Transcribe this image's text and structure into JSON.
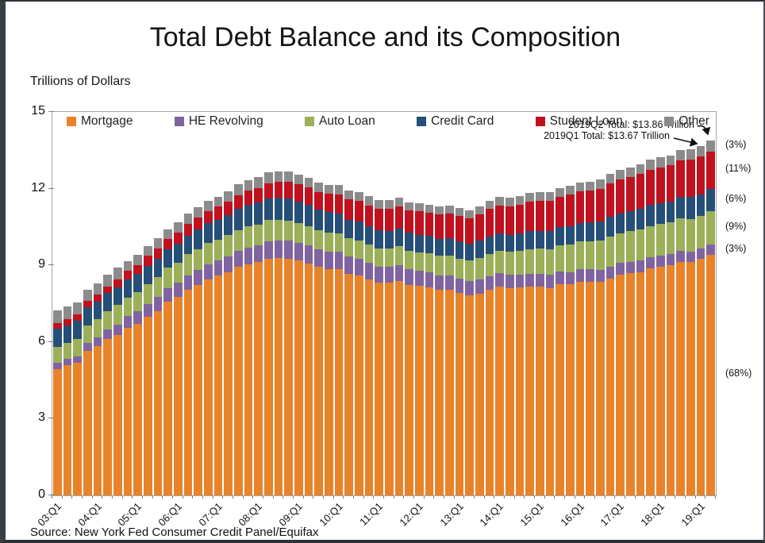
{
  "title": "Total Debt Balance and its Composition",
  "y_axis_unit_label": "Trillions of Dollars",
  "source": "Source: New York Fed Consumer Credit Panel/Equifax",
  "annotations": {
    "q2_total": "2019Q2 Total: $13.86 Trillion",
    "q1_total": "2019Q1 Total: $13.67 Trillion",
    "segment_shares": [
      {
        "series": "Mortgage",
        "label": "(68%)"
      },
      {
        "series": "HE Revolving",
        "label": "(3%)"
      },
      {
        "series": "Auto Loan",
        "label": "(9%)"
      },
      {
        "series": "Credit Card",
        "label": "(6%)"
      },
      {
        "series": "Student Loan",
        "label": "(11%)"
      },
      {
        "series": "Other",
        "label": "(3%)"
      }
    ]
  },
  "colors": {
    "mortgage": "#E8832A",
    "he_revolving": "#8064A2",
    "auto_loan": "#9BB058",
    "credit_card": "#254E78",
    "student_loan": "#C0111E",
    "other": "#8B8B8B",
    "axis": "#A6A6A6"
  },
  "chart_data": {
    "type": "bar",
    "stacked": true,
    "title": "Total Debt Balance and its Composition",
    "ylabel": "Trillions of Dollars",
    "ylim": [
      0,
      15
    ],
    "y_ticks": [
      0,
      3,
      6,
      9,
      12,
      15
    ],
    "x_label_every": 4,
    "legend_position": "top-inside",
    "grid": false,
    "x": [
      "03:Q1",
      "03:Q2",
      "03:Q3",
      "03:Q4",
      "04:Q1",
      "04:Q2",
      "04:Q3",
      "04:Q4",
      "05:Q1",
      "05:Q2",
      "05:Q3",
      "05:Q4",
      "06:Q1",
      "06:Q2",
      "06:Q3",
      "06:Q4",
      "07:Q1",
      "07:Q2",
      "07:Q3",
      "07:Q4",
      "08:Q1",
      "08:Q2",
      "08:Q3",
      "08:Q4",
      "09:Q1",
      "09:Q2",
      "09:Q3",
      "09:Q4",
      "10:Q1",
      "10:Q2",
      "10:Q3",
      "10:Q4",
      "11:Q1",
      "11:Q2",
      "11:Q3",
      "11:Q4",
      "12:Q1",
      "12:Q2",
      "12:Q3",
      "12:Q4",
      "13:Q1",
      "13:Q2",
      "13:Q3",
      "13:Q4",
      "14:Q1",
      "14:Q2",
      "14:Q3",
      "14:Q4",
      "15:Q1",
      "15:Q2",
      "15:Q3",
      "15:Q4",
      "16:Q1",
      "16:Q2",
      "16:Q3",
      "16:Q4",
      "17:Q1",
      "17:Q2",
      "17:Q3",
      "17:Q4",
      "18:Q1",
      "18:Q2",
      "18:Q3",
      "18:Q4",
      "19:Q1",
      "19:Q2"
    ],
    "series": [
      {
        "name": "Mortgage",
        "color": "#E8832A",
        "values": [
          4.94,
          5.08,
          5.18,
          5.66,
          5.84,
          6.11,
          6.26,
          6.54,
          6.72,
          6.98,
          7.22,
          7.57,
          7.76,
          8.04,
          8.24,
          8.45,
          8.59,
          8.74,
          8.93,
          9.05,
          9.12,
          9.27,
          9.29,
          9.26,
          9.18,
          9.06,
          8.94,
          8.84,
          8.85,
          8.67,
          8.61,
          8.45,
          8.33,
          8.32,
          8.4,
          8.24,
          8.19,
          8.15,
          8.03,
          8.03,
          7.93,
          7.84,
          7.9,
          8.05,
          8.17,
          8.1,
          8.13,
          8.17,
          8.17,
          8.12,
          8.26,
          8.25,
          8.37,
          8.36,
          8.35,
          8.48,
          8.63,
          8.69,
          8.74,
          8.88,
          8.94,
          9.0,
          9.14,
          9.12,
          9.24,
          9.41
        ]
      },
      {
        "name": "HE Revolving",
        "color": "#8064A2",
        "values": [
          0.24,
          0.26,
          0.27,
          0.3,
          0.33,
          0.37,
          0.43,
          0.47,
          0.5,
          0.52,
          0.54,
          0.55,
          0.56,
          0.57,
          0.58,
          0.6,
          0.61,
          0.62,
          0.63,
          0.65,
          0.67,
          0.68,
          0.69,
          0.71,
          0.71,
          0.71,
          0.7,
          0.69,
          0.68,
          0.67,
          0.66,
          0.64,
          0.62,
          0.62,
          0.61,
          0.6,
          0.59,
          0.58,
          0.57,
          0.56,
          0.55,
          0.54,
          0.54,
          0.53,
          0.53,
          0.52,
          0.51,
          0.51,
          0.51,
          0.5,
          0.49,
          0.49,
          0.49,
          0.48,
          0.47,
          0.47,
          0.46,
          0.45,
          0.45,
          0.44,
          0.44,
          0.43,
          0.42,
          0.41,
          0.41,
          0.4
        ]
      },
      {
        "name": "Auto Loan",
        "color": "#9BB058",
        "values": [
          0.64,
          0.62,
          0.68,
          0.7,
          0.72,
          0.74,
          0.75,
          0.73,
          0.73,
          0.77,
          0.79,
          0.78,
          0.79,
          0.82,
          0.82,
          0.82,
          0.81,
          0.82,
          0.82,
          0.82,
          0.81,
          0.82,
          0.81,
          0.79,
          0.77,
          0.76,
          0.74,
          0.74,
          0.72,
          0.71,
          0.71,
          0.71,
          0.71,
          0.71,
          0.73,
          0.73,
          0.74,
          0.75,
          0.77,
          0.78,
          0.79,
          0.81,
          0.85,
          0.86,
          0.88,
          0.91,
          0.93,
          0.96,
          0.97,
          1.01,
          1.03,
          1.06,
          1.07,
          1.1,
          1.14,
          1.16,
          1.17,
          1.19,
          1.21,
          1.22,
          1.23,
          1.24,
          1.27,
          1.27,
          1.28,
          1.3
        ]
      },
      {
        "name": "Credit Card",
        "color": "#254E78",
        "values": [
          0.69,
          0.69,
          0.69,
          0.7,
          0.7,
          0.7,
          0.71,
          0.72,
          0.71,
          0.72,
          0.72,
          0.73,
          0.73,
          0.74,
          0.75,
          0.77,
          0.77,
          0.79,
          0.82,
          0.84,
          0.85,
          0.85,
          0.87,
          0.87,
          0.84,
          0.83,
          0.81,
          0.81,
          0.77,
          0.74,
          0.73,
          0.73,
          0.7,
          0.69,
          0.69,
          0.7,
          0.68,
          0.67,
          0.67,
          0.68,
          0.66,
          0.67,
          0.67,
          0.68,
          0.66,
          0.67,
          0.68,
          0.7,
          0.68,
          0.7,
          0.71,
          0.73,
          0.71,
          0.73,
          0.75,
          0.78,
          0.76,
          0.78,
          0.81,
          0.83,
          0.82,
          0.83,
          0.84,
          0.87,
          0.85,
          0.87
        ]
      },
      {
        "name": "Student Loan",
        "color": "#C0111E",
        "values": [
          0.24,
          0.24,
          0.25,
          0.25,
          0.26,
          0.26,
          0.29,
          0.32,
          0.36,
          0.38,
          0.39,
          0.39,
          0.45,
          0.46,
          0.48,
          0.48,
          0.51,
          0.53,
          0.55,
          0.56,
          0.58,
          0.59,
          0.61,
          0.64,
          0.67,
          0.68,
          0.69,
          0.71,
          0.75,
          0.78,
          0.8,
          0.81,
          0.85,
          0.87,
          0.87,
          0.87,
          0.91,
          0.91,
          0.94,
          0.97,
          0.99,
          0.99,
          1.03,
          1.08,
          1.11,
          1.12,
          1.13,
          1.16,
          1.19,
          1.19,
          1.2,
          1.23,
          1.26,
          1.26,
          1.28,
          1.31,
          1.34,
          1.34,
          1.36,
          1.38,
          1.41,
          1.41,
          1.44,
          1.46,
          1.49,
          1.48
        ]
      },
      {
        "name": "Other",
        "color": "#8B8B8B",
        "values": [
          0.48,
          0.49,
          0.48,
          0.45,
          0.45,
          0.47,
          0.47,
          0.39,
          0.39,
          0.39,
          0.4,
          0.39,
          0.4,
          0.39,
          0.39,
          0.39,
          0.4,
          0.4,
          0.42,
          0.41,
          0.41,
          0.42,
          0.41,
          0.4,
          0.39,
          0.38,
          0.37,
          0.37,
          0.37,
          0.36,
          0.37,
          0.36,
          0.34,
          0.34,
          0.34,
          0.33,
          0.33,
          0.32,
          0.32,
          0.32,
          0.32,
          0.31,
          0.31,
          0.32,
          0.32,
          0.32,
          0.33,
          0.34,
          0.33,
          0.33,
          0.34,
          0.35,
          0.34,
          0.35,
          0.36,
          0.37,
          0.37,
          0.37,
          0.38,
          0.39,
          0.39,
          0.39,
          0.39,
          0.41,
          0.41,
          0.41
        ]
      }
    ]
  }
}
